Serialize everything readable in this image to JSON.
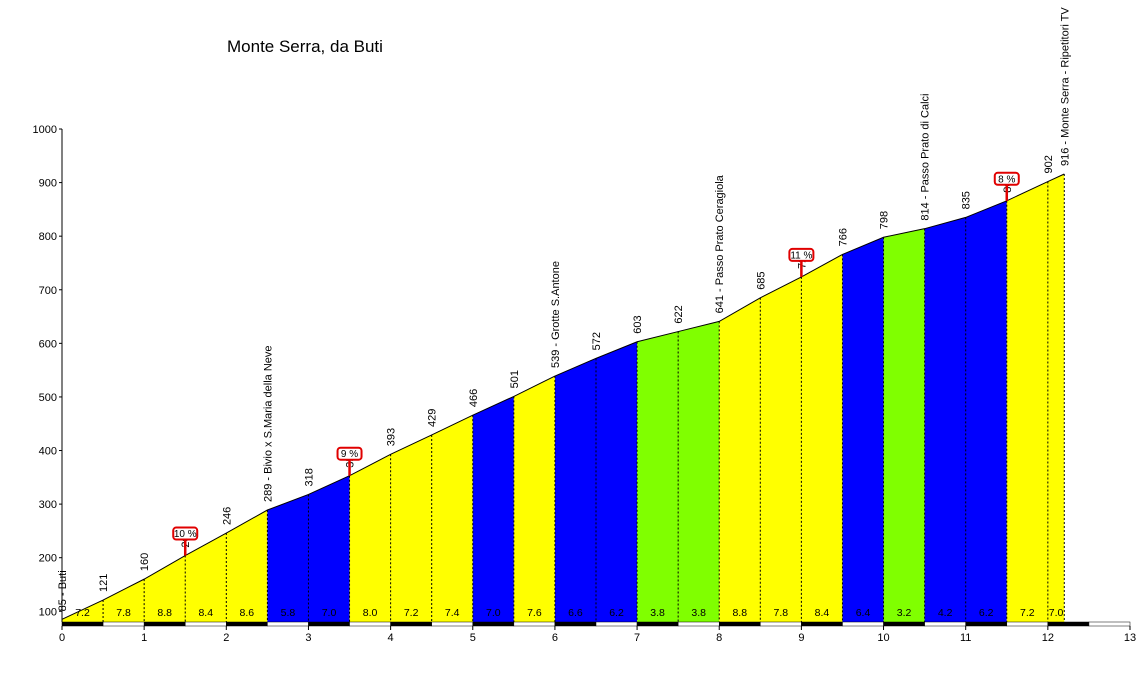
{
  "chart_data": {
    "type": "area",
    "title": "Monte Serra, da Buti",
    "xlim": [
      0,
      13
    ],
    "ylim": [
      80,
      1000
    ],
    "x_ticks": [
      0,
      1,
      2,
      3,
      4,
      5,
      6,
      7,
      8,
      9,
      10,
      11,
      12,
      13
    ],
    "x_tick_labels": [
      "0",
      "1",
      "2",
      "3",
      "4",
      "5",
      "6",
      "7",
      "8",
      "9",
      "10",
      "11",
      "12",
      "13"
    ],
    "y_ticks": [
      100,
      200,
      300,
      400,
      500,
      600,
      700,
      800,
      900,
      1000
    ],
    "y_tick_labels": [
      "100",
      "200",
      "300",
      "400",
      "500",
      "600",
      "700",
      "800",
      "900",
      "1000"
    ],
    "colors": {
      "yellow": "#ffff00",
      "blue": "#0000ff",
      "green": "#80ff00"
    },
    "profile": [
      {
        "x": 0,
        "y": 85,
        "label": "85 - Buti"
      },
      {
        "x": 0.5,
        "y": 121,
        "label": "121"
      },
      {
        "x": 1,
        "y": 160,
        "label": "160"
      },
      {
        "x": 1.5,
        "y": 204,
        "label": "204"
      },
      {
        "x": 2,
        "y": 246,
        "label": "246"
      },
      {
        "x": 2.5,
        "y": 289,
        "label": "289 - Bivio x S.Maria della Neve"
      },
      {
        "x": 3,
        "y": 318,
        "label": "318"
      },
      {
        "x": 3.5,
        "y": 353,
        "label": "353"
      },
      {
        "x": 4,
        "y": 393,
        "label": "393"
      },
      {
        "x": 4.5,
        "y": 429,
        "label": "429"
      },
      {
        "x": 5,
        "y": 466,
        "label": "466"
      },
      {
        "x": 5.5,
        "y": 501,
        "label": "501"
      },
      {
        "x": 6,
        "y": 539,
        "label": "539 - Grotte S.Antone"
      },
      {
        "x": 6.5,
        "y": 572,
        "label": "572"
      },
      {
        "x": 7,
        "y": 603,
        "label": "603"
      },
      {
        "x": 7.5,
        "y": 622,
        "label": "622"
      },
      {
        "x": 8,
        "y": 641,
        "label": "641 - Passo Prato Ceragiola"
      },
      {
        "x": 8.5,
        "y": 685,
        "label": "685"
      },
      {
        "x": 9,
        "y": 724,
        "label": "724"
      },
      {
        "x": 9.5,
        "y": 766,
        "label": "766"
      },
      {
        "x": 10,
        "y": 798,
        "label": "798"
      },
      {
        "x": 10.5,
        "y": 814,
        "label": "814 - Passo Prato di Calci"
      },
      {
        "x": 11,
        "y": 835,
        "label": "835"
      },
      {
        "x": 11.5,
        "y": 866,
        "label": "866"
      },
      {
        "x": 12,
        "y": 902,
        "label": "902"
      },
      {
        "x": 12.2,
        "y": 916,
        "label": "916 - Monte Serra - Ripetitori TV"
      }
    ],
    "segments": [
      {
        "x0": 0,
        "x1": 2.5,
        "color": "yellow"
      },
      {
        "x0": 2.5,
        "x1": 3.5,
        "color": "blue"
      },
      {
        "x0": 3.5,
        "x1": 5,
        "color": "yellow"
      },
      {
        "x0": 5,
        "x1": 5.5,
        "color": "blue"
      },
      {
        "x0": 5.5,
        "x1": 6,
        "color": "yellow"
      },
      {
        "x0": 6,
        "x1": 7,
        "color": "blue"
      },
      {
        "x0": 7,
        "x1": 8,
        "color": "green"
      },
      {
        "x0": 8,
        "x1": 9.5,
        "color": "yellow"
      },
      {
        "x0": 9.5,
        "x1": 10,
        "color": "blue"
      },
      {
        "x0": 10,
        "x1": 10.5,
        "color": "green"
      },
      {
        "x0": 10.5,
        "x1": 11.5,
        "color": "blue"
      },
      {
        "x0": 11.5,
        "x1": 12.2,
        "color": "yellow"
      }
    ],
    "gradients": [
      {
        "x": 0.25,
        "label": "7.2"
      },
      {
        "x": 0.75,
        "label": "7.8"
      },
      {
        "x": 1.25,
        "label": "8.8"
      },
      {
        "x": 1.75,
        "label": "8.4"
      },
      {
        "x": 2.25,
        "label": "8.6"
      },
      {
        "x": 2.75,
        "label": "5.8"
      },
      {
        "x": 3.25,
        "label": "7.0"
      },
      {
        "x": 3.75,
        "label": "8.0"
      },
      {
        "x": 4.25,
        "label": "7.2"
      },
      {
        "x": 4.75,
        "label": "7.4"
      },
      {
        "x": 5.25,
        "label": "7.0"
      },
      {
        "x": 5.75,
        "label": "7.6"
      },
      {
        "x": 6.25,
        "label": "6.6"
      },
      {
        "x": 6.75,
        "label": "6.2"
      },
      {
        "x": 7.25,
        "label": "3.8"
      },
      {
        "x": 7.75,
        "label": "3.8"
      },
      {
        "x": 8.25,
        "label": "8.8"
      },
      {
        "x": 8.75,
        "label": "7.8"
      },
      {
        "x": 9.25,
        "label": "8.4"
      },
      {
        "x": 9.75,
        "label": "6.4"
      },
      {
        "x": 10.25,
        "label": "3.2"
      },
      {
        "x": 10.75,
        "label": "4.2"
      },
      {
        "x": 11.25,
        "label": "6.2"
      },
      {
        "x": 11.75,
        "label": "7.2"
      },
      {
        "x": 12.1,
        "label": "7.0"
      }
    ],
    "max_gradient_markers": [
      {
        "x": 1.5,
        "y": 204,
        "label": "10 %"
      },
      {
        "x": 3.5,
        "y": 353,
        "label": "9 %"
      },
      {
        "x": 9,
        "y": 724,
        "label": "11 %"
      },
      {
        "x": 11.5,
        "y": 866,
        "label": "8 %"
      }
    ]
  }
}
